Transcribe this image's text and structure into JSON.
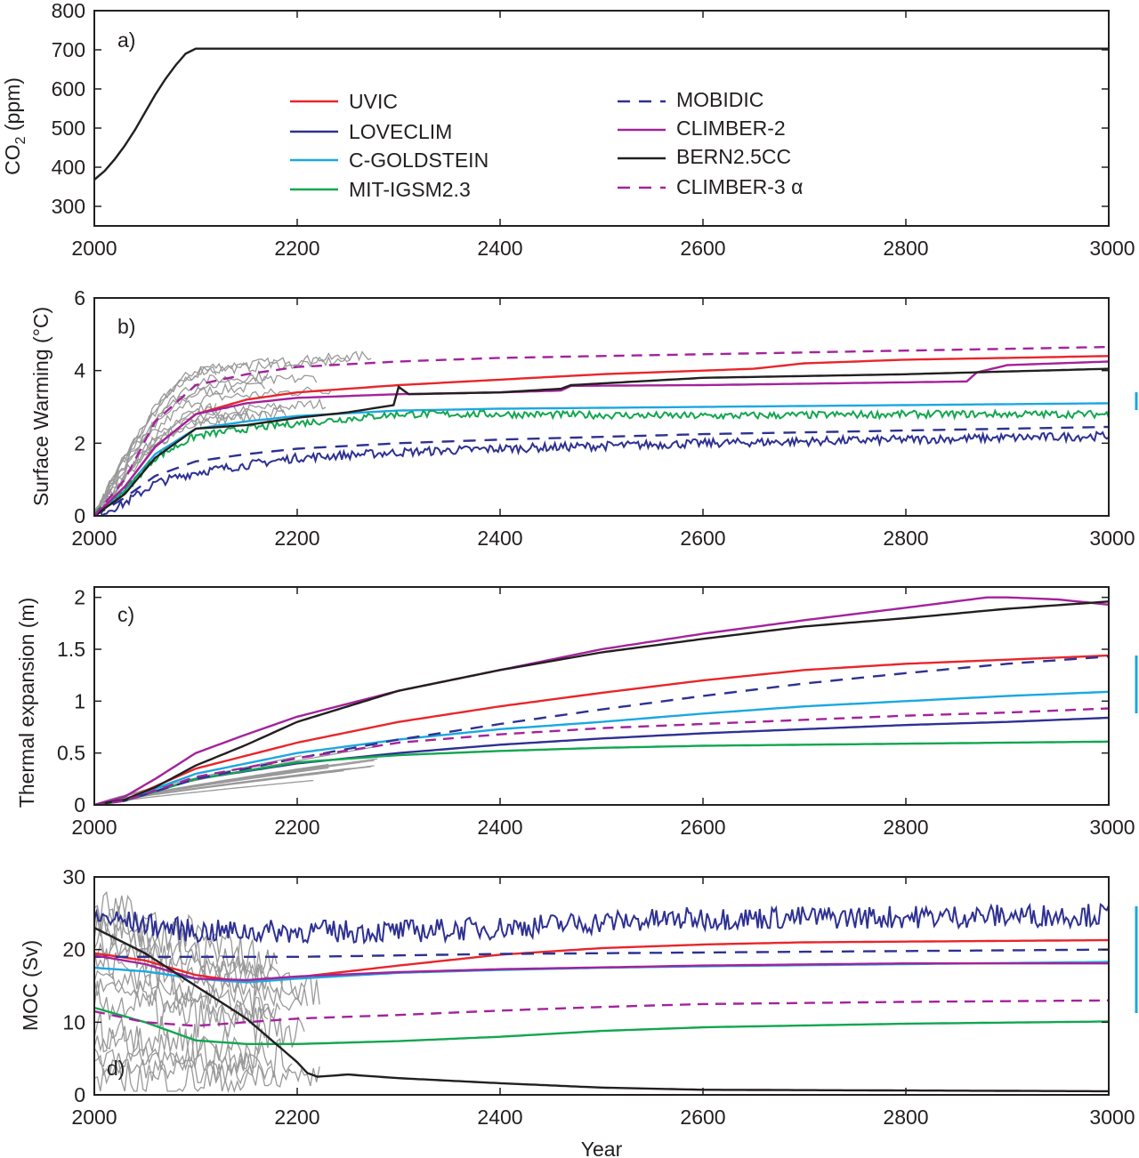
{
  "colors": {
    "UVIC": "#e8262b",
    "LOVECLIM": "#2e3192",
    "C-GOLDSTEIN": "#1ba8e0",
    "MIT-IGSM2.3": "#12a650",
    "MOBIDIC": "#2e3192",
    "CLIMBER-2": "#a3239b",
    "BERN2.5CC": "#231f20",
    "CLIMBER-3 α": "#a3239b",
    "ensemble": "#999999",
    "axis": "#231f20"
  },
  "legend": {
    "left": [
      {
        "name": "UVIC",
        "style": "solid"
      },
      {
        "name": "LOVECLIM",
        "style": "solid"
      },
      {
        "name": "C-GOLDSTEIN",
        "style": "solid"
      },
      {
        "name": "MIT-IGSM2.3",
        "style": "solid"
      }
    ],
    "right": [
      {
        "name": "MOBIDIC",
        "style": "dashed"
      },
      {
        "name": "CLIMBER-2",
        "style": "solid"
      },
      {
        "name": "BERN2.5CC",
        "style": "solid"
      },
      {
        "name": "CLIMBER-3 α",
        "style": "dashed"
      }
    ]
  },
  "xlabel": "Year",
  "chart_data": [
    {
      "type": "line",
      "panel_label": "a)",
      "ylabel": "CO2 (ppm)",
      "xlim": [
        2000,
        3000
      ],
      "ylim": [
        250,
        800
      ],
      "xticks": [
        "2000",
        "2200",
        "2400",
        "2600",
        "2800",
        "3000"
      ],
      "yticks": [
        "300",
        "400",
        "500",
        "600",
        "700",
        "800"
      ],
      "series": [
        {
          "name": "",
          "color": "#231f20",
          "x": [
            2000,
            2010,
            2020,
            2030,
            2040,
            2050,
            2060,
            2070,
            2080,
            2090,
            2100,
            3000
          ],
          "y": [
            368,
            390,
            420,
            455,
            495,
            540,
            585,
            625,
            660,
            690,
            703,
            703
          ]
        }
      ]
    },
    {
      "type": "line",
      "panel_label": "b)",
      "ylabel": "Surface Warming (°C)",
      "xlim": [
        2000,
        3000
      ],
      "ylim": [
        0,
        6
      ],
      "xticks": [
        "2000",
        "2200",
        "2400",
        "2600",
        "2800",
        "3000"
      ],
      "yticks": [
        "0",
        "2",
        "4",
        "6"
      ],
      "series": [
        {
          "name": "UVIC",
          "x": [
            2000,
            2030,
            2060,
            2100,
            2150,
            2200,
            2300,
            2400,
            2500,
            2650,
            2700,
            2800,
            3000
          ],
          "y": [
            0,
            0.8,
            1.9,
            2.8,
            3.2,
            3.4,
            3.6,
            3.75,
            3.9,
            4.05,
            4.2,
            4.3,
            4.4
          ]
        },
        {
          "name": "LOVECLIM",
          "noise": 0.12,
          "x": [
            2000,
            2030,
            2060,
            2100,
            2150,
            2200,
            2300,
            2400,
            2600,
            2800,
            3000
          ],
          "y": [
            0,
            0.35,
            0.9,
            1.2,
            1.4,
            1.6,
            1.75,
            1.85,
            2.0,
            2.1,
            2.2
          ]
        },
        {
          "name": "C-GOLDSTEIN",
          "x": [
            2000,
            2030,
            2060,
            2100,
            2150,
            2200,
            2300,
            2400,
            2600,
            2800,
            3000
          ],
          "y": [
            0,
            0.7,
            1.7,
            2.4,
            2.6,
            2.75,
            2.9,
            2.95,
            3.0,
            3.05,
            3.1
          ]
        },
        {
          "name": "MIT-IGSM2.3",
          "noise": 0.1,
          "x": [
            2000,
            2030,
            2060,
            2100,
            2150,
            2200,
            2300,
            2400,
            2600,
            2800,
            3000
          ],
          "y": [
            0,
            0.7,
            1.6,
            2.2,
            2.4,
            2.55,
            2.8,
            2.8,
            2.75,
            2.8,
            2.8
          ]
        },
        {
          "name": "MOBIDIC",
          "x": [
            2000,
            2030,
            2060,
            2100,
            2150,
            2200,
            2300,
            2400,
            2600,
            2800,
            3000
          ],
          "y": [
            0,
            0.5,
            1.1,
            1.5,
            1.7,
            1.85,
            2.0,
            2.1,
            2.25,
            2.35,
            2.45
          ]
        },
        {
          "name": "CLIMBER-2",
          "x": [
            2000,
            2030,
            2060,
            2100,
            2150,
            2200,
            2300,
            2400,
            2460,
            2470,
            2600,
            2860,
            2870,
            2900,
            3000
          ],
          "y": [
            0,
            0.8,
            1.9,
            2.8,
            3.1,
            3.25,
            3.35,
            3.4,
            3.45,
            3.58,
            3.6,
            3.7,
            3.95,
            4.15,
            4.25
          ]
        },
        {
          "name": "BERN2.5CC",
          "x": [
            2000,
            2030,
            2060,
            2100,
            2150,
            2200,
            2250,
            2295,
            2300,
            2310,
            2400,
            2460,
            2470,
            2600,
            2800,
            3000
          ],
          "y": [
            0,
            0.6,
            1.6,
            2.4,
            2.5,
            2.7,
            2.85,
            3.05,
            3.55,
            3.35,
            3.4,
            3.5,
            3.6,
            3.8,
            3.9,
            4.05
          ]
        },
        {
          "name": "CLIMBER-3 α",
          "x": [
            2000,
            2030,
            2060,
            2100,
            2150,
            2200,
            2300,
            2400,
            2600,
            2800,
            3000
          ],
          "y": [
            0,
            1.0,
            2.6,
            3.6,
            3.9,
            4.1,
            4.25,
            4.35,
            4.45,
            4.55,
            4.65
          ]
        }
      ]
    },
    {
      "type": "line",
      "panel_label": "c)",
      "ylabel": "Thermal expansion (m)",
      "xlim": [
        2000,
        3000
      ],
      "ylim": [
        0,
        2.1
      ],
      "xticks": [
        "2000",
        "2200",
        "2400",
        "2600",
        "2800",
        "3000"
      ],
      "yticks": [
        "0",
        "0.5",
        "1",
        "1.5",
        "2"
      ],
      "series": [
        {
          "name": "UVIC",
          "x": [
            2000,
            2030,
            2100,
            2200,
            2300,
            2400,
            2500,
            2600,
            2700,
            2800,
            2900,
            3000
          ],
          "y": [
            0,
            0.05,
            0.35,
            0.6,
            0.8,
            0.95,
            1.08,
            1.2,
            1.3,
            1.36,
            1.4,
            1.44
          ]
        },
        {
          "name": "LOVECLIM",
          "x": [
            2000,
            2030,
            2100,
            2200,
            2300,
            2400,
            2500,
            2600,
            2700,
            2800,
            2900,
            3000
          ],
          "y": [
            0,
            0.04,
            0.25,
            0.4,
            0.5,
            0.58,
            0.64,
            0.69,
            0.73,
            0.77,
            0.8,
            0.84
          ]
        },
        {
          "name": "C-GOLDSTEIN",
          "x": [
            2000,
            2030,
            2100,
            2200,
            2300,
            2400,
            2500,
            2600,
            2700,
            2800,
            2900,
            3000
          ],
          "y": [
            0,
            0.05,
            0.3,
            0.5,
            0.63,
            0.73,
            0.8,
            0.88,
            0.95,
            1.0,
            1.05,
            1.09
          ]
        },
        {
          "name": "MIT-IGSM2.3",
          "x": [
            2000,
            2030,
            2100,
            2200,
            2300,
            2400,
            2500,
            2600,
            2700,
            2800,
            2900,
            3000
          ],
          "y": [
            0,
            0.04,
            0.25,
            0.41,
            0.48,
            0.52,
            0.55,
            0.57,
            0.58,
            0.59,
            0.6,
            0.61
          ]
        },
        {
          "name": "MOBIDIC",
          "x": [
            2000,
            2030,
            2100,
            2200,
            2300,
            2400,
            2500,
            2600,
            2700,
            2800,
            2900,
            3000
          ],
          "y": [
            0,
            0.04,
            0.25,
            0.45,
            0.63,
            0.78,
            0.92,
            1.05,
            1.17,
            1.27,
            1.36,
            1.43
          ]
        },
        {
          "name": "CLIMBER-2",
          "x": [
            2000,
            2030,
            2060,
            2100,
            2150,
            2200,
            2300,
            2400,
            2500,
            2600,
            2700,
            2800,
            2880,
            2900,
            2950,
            3000
          ],
          "y": [
            0,
            0.08,
            0.25,
            0.5,
            0.68,
            0.85,
            1.1,
            1.3,
            1.5,
            1.65,
            1.78,
            1.9,
            2.0,
            2.0,
            1.98,
            1.93
          ]
        },
        {
          "name": "BERN2.5CC",
          "x": [
            2000,
            2030,
            2060,
            2100,
            2150,
            2200,
            2300,
            2400,
            2500,
            2600,
            2700,
            2800,
            2900,
            3000
          ],
          "y": [
            0,
            0.05,
            0.17,
            0.38,
            0.58,
            0.8,
            1.1,
            1.3,
            1.47,
            1.6,
            1.72,
            1.8,
            1.89,
            1.96
          ]
        },
        {
          "name": "CLIMBER-3 α",
          "x": [
            2000,
            2030,
            2100,
            2200,
            2300,
            2400,
            2500,
            2600,
            2700,
            2800,
            2900,
            3000
          ],
          "y": [
            0,
            0.04,
            0.27,
            0.45,
            0.6,
            0.68,
            0.74,
            0.78,
            0.82,
            0.86,
            0.89,
            0.93
          ]
        }
      ]
    },
    {
      "type": "line",
      "panel_label": "d)",
      "ylabel": "MOC (Sv)",
      "xlim": [
        2000,
        3000
      ],
      "ylim": [
        0,
        30
      ],
      "xticks": [
        "2000",
        "2200",
        "2400",
        "2600",
        "2800",
        "3000"
      ],
      "yticks": [
        "0",
        "10",
        "20",
        "30"
      ],
      "series": [
        {
          "name": "UVIC",
          "x": [
            2000,
            2050,
            2100,
            2150,
            2200,
            2300,
            2400,
            2500,
            2600,
            2700,
            2800,
            3000
          ],
          "y": [
            19.5,
            18.5,
            16.5,
            15.5,
            16.2,
            17.8,
            19.3,
            20.2,
            20.7,
            21.0,
            21.1,
            21.3
          ]
        },
        {
          "name": "LOVECLIM",
          "noise": 1.6,
          "x": [
            2000,
            2100,
            2200,
            2300,
            2400,
            2500,
            2600,
            2800,
            3000
          ],
          "y": [
            24.5,
            22.5,
            22.5,
            22.5,
            23.0,
            23.8,
            24.3,
            24.5,
            24.8
          ]
        },
        {
          "name": "C-GOLDSTEIN",
          "x": [
            2000,
            2050,
            2100,
            2150,
            2200,
            2300,
            2400,
            2500,
            2600,
            2800,
            3000
          ],
          "y": [
            17.5,
            17.0,
            16.0,
            15.5,
            16.0,
            16.8,
            17.2,
            17.5,
            17.7,
            18.0,
            18.3
          ]
        },
        {
          "name": "MIT-IGSM2.3",
          "x": [
            2000,
            2050,
            2100,
            2150,
            2200,
            2300,
            2400,
            2500,
            2600,
            2800,
            3000
          ],
          "y": [
            12.0,
            10.0,
            7.5,
            7.0,
            7.0,
            7.4,
            8.0,
            8.8,
            9.3,
            9.8,
            10.1
          ]
        },
        {
          "name": "MOBIDIC",
          "x": [
            2000,
            2100,
            2200,
            2300,
            2400,
            2600,
            2800,
            3000
          ],
          "y": [
            19.0,
            19.0,
            19.0,
            19.2,
            19.4,
            19.6,
            19.8,
            20.0
          ]
        },
        {
          "name": "CLIMBER-2",
          "x": [
            2000,
            2050,
            2100,
            2150,
            2200,
            2300,
            2400,
            2600,
            2800,
            3000
          ],
          "y": [
            19.2,
            18.0,
            16.0,
            15.8,
            16.3,
            16.9,
            17.3,
            17.8,
            18.1,
            18.1
          ]
        },
        {
          "name": "BERN2.5CC",
          "x": [
            2000,
            2050,
            2100,
            2150,
            2200,
            2210,
            2220,
            2250,
            2300,
            2400,
            2500,
            2600,
            2800,
            3000
          ],
          "y": [
            23.0,
            19.5,
            15.0,
            10.5,
            4.5,
            3.0,
            2.5,
            2.8,
            2.3,
            1.6,
            1.0,
            0.7,
            0.6,
            0.5
          ]
        },
        {
          "name": "CLIMBER-3 α",
          "x": [
            2000,
            2050,
            2100,
            2150,
            2200,
            2300,
            2400,
            2500,
            2600,
            2800,
            3000
          ],
          "y": [
            11.5,
            10.0,
            9.5,
            10.0,
            10.5,
            11.0,
            11.6,
            12.1,
            12.5,
            12.8,
            13.0
          ]
        }
      ]
    }
  ]
}
